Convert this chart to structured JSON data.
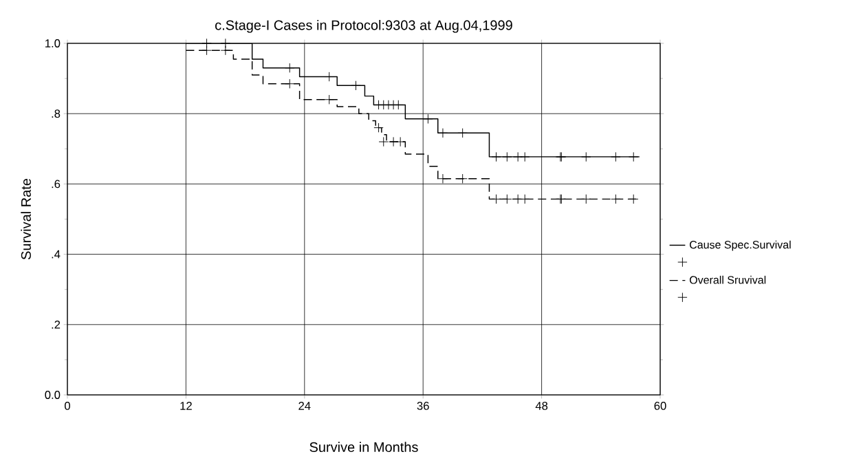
{
  "chart_data": {
    "type": "step",
    "title": "c.Stage-I Cases in Protocol:9303 at Aug.04,1999",
    "xlabel": "Survive in Months",
    "ylabel": "Survival Rate",
    "xlim": [
      0,
      60
    ],
    "xticks": [
      0,
      12,
      24,
      36,
      48,
      60
    ],
    "ylim": [
      0,
      1
    ],
    "yticks": [
      {
        "value": 0,
        "label": "0.0"
      },
      {
        "value": 0.2,
        "label": ".2"
      },
      {
        "value": 0.4,
        "label": ".4"
      },
      {
        "value": 0.6,
        "label": ".6"
      },
      {
        "value": 0.8,
        "label": ".8"
      },
      {
        "value": 1,
        "label": "1.0"
      }
    ],
    "grid": true,
    "legend": "right",
    "series": [
      {
        "name": "Cause Spec.Survival",
        "color": "#000000",
        "line_style": "solid",
        "x": [
          12,
          18.7,
          19.8,
          23.5,
          27.3,
          30.1,
          31,
          34.2,
          37.5,
          42.7,
          57.9
        ],
        "values": [
          1.0,
          0.955,
          0.93,
          0.905,
          0.88,
          0.85,
          0.825,
          0.785,
          0.745,
          0.677,
          0.677
        ]
      },
      {
        "type": "scatter",
        "color": "#000000",
        "marker": "cross",
        "x": [
          14.1,
          16,
          22.5,
          26.5,
          29.2,
          31.5,
          32,
          32.5,
          33,
          33.5,
          36.5,
          38,
          40,
          43.4,
          44.5,
          45.6,
          46.3,
          49.9,
          50,
          52.5,
          55.5,
          57.3
        ],
        "values": [
          1.0,
          1.0,
          0.93,
          0.905,
          0.88,
          0.825,
          0.825,
          0.825,
          0.825,
          0.825,
          0.785,
          0.745,
          0.745,
          0.677,
          0.677,
          0.677,
          0.677,
          0.677,
          0.677,
          0.677,
          0.677,
          0.677
        ]
      },
      {
        "name": "Overall Sruvival",
        "color": "#000000",
        "line_style": "dashed",
        "x": [
          12,
          16.8,
          18.7,
          19.8,
          23.5,
          27.3,
          29.5,
          30.5,
          31.2,
          31.8,
          32.3,
          34.2,
          36.5,
          37.5,
          42.7,
          57.9
        ],
        "values": [
          0.98,
          0.955,
          0.91,
          0.885,
          0.84,
          0.82,
          0.8,
          0.78,
          0.76,
          0.74,
          0.72,
          0.685,
          0.65,
          0.615,
          0.557,
          0.557
        ]
      },
      {
        "type": "scatter",
        "color": "#000000",
        "marker": "cross",
        "x": [
          14.1,
          16,
          22.5,
          26.5,
          31.5,
          32,
          33,
          33.7,
          38,
          40,
          43.4,
          44.5,
          45.6,
          46.3,
          49.9,
          50,
          52.5,
          55.5,
          57.3
        ],
        "values": [
          0.98,
          0.98,
          0.885,
          0.84,
          0.76,
          0.72,
          0.72,
          0.72,
          0.615,
          0.615,
          0.557,
          0.557,
          0.557,
          0.557,
          0.557,
          0.557,
          0.557,
          0.557,
          0.557
        ]
      }
    ]
  }
}
